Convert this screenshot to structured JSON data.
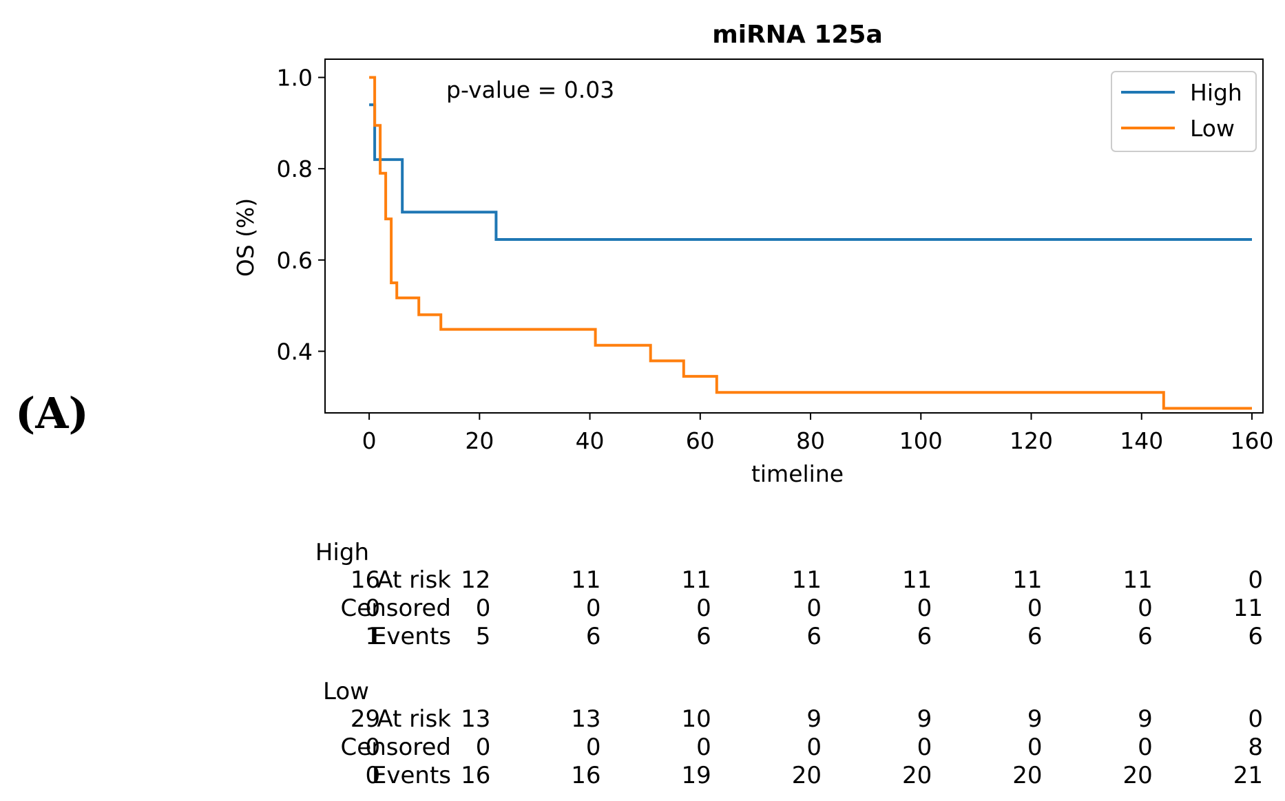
{
  "panel_label": "(A)",
  "chart_data": {
    "type": "line",
    "title": "miRNA 125a",
    "xlabel": "timeline",
    "ylabel": "OS (%)",
    "xlim": [
      -8,
      162
    ],
    "ylim": [
      0.265,
      1.04
    ],
    "xticks": [
      0,
      20,
      40,
      60,
      80,
      100,
      120,
      140,
      160
    ],
    "xtick_labels": [
      "0",
      "20",
      "40",
      "60",
      "80",
      "100",
      "120",
      "140",
      "160"
    ],
    "yticks": [
      0.4,
      0.6,
      0.8,
      1.0
    ],
    "ytick_labels": [
      "0.4",
      "0.6",
      "0.8",
      "1.0"
    ],
    "annotation": "p-value = 0.03",
    "legend_position": "top-right",
    "series": [
      {
        "name": "High",
        "color": "#1f77b4",
        "step_points": [
          [
            0,
            0.94
          ],
          [
            1,
            0.94
          ],
          [
            1,
            0.82
          ],
          [
            6,
            0.82
          ],
          [
            6,
            0.705
          ],
          [
            23,
            0.705
          ],
          [
            23,
            0.645
          ],
          [
            160,
            0.645
          ]
        ]
      },
      {
        "name": "Low",
        "color": "#ff7f0e",
        "step_points": [
          [
            0,
            1.0
          ],
          [
            1,
            1.0
          ],
          [
            1,
            0.895
          ],
          [
            2,
            0.895
          ],
          [
            2,
            0.79
          ],
          [
            3,
            0.79
          ],
          [
            3,
            0.69
          ],
          [
            4,
            0.69
          ],
          [
            4,
            0.55
          ],
          [
            5,
            0.55
          ],
          [
            5,
            0.517
          ],
          [
            9,
            0.517
          ],
          [
            9,
            0.48
          ],
          [
            13,
            0.48
          ],
          [
            13,
            0.448
          ],
          [
            41,
            0.448
          ],
          [
            41,
            0.413
          ],
          [
            51,
            0.413
          ],
          [
            51,
            0.379
          ],
          [
            57,
            0.379
          ],
          [
            57,
            0.345
          ],
          [
            63,
            0.345
          ],
          [
            63,
            0.31
          ],
          [
            144,
            0.31
          ],
          [
            144,
            0.275
          ],
          [
            160,
            0.275
          ]
        ]
      }
    ]
  },
  "risk_table": {
    "times": [
      0,
      20,
      40,
      60,
      80,
      100,
      120,
      140,
      160
    ],
    "row_labels": [
      "At risk",
      "Censored",
      "Events"
    ],
    "groups": [
      {
        "name": "High",
        "rows": {
          "at_risk": [
            "16",
            "12",
            "11",
            "11",
            "11",
            "11",
            "11",
            "11",
            "0"
          ],
          "censored": [
            "0",
            "0",
            "0",
            "0",
            "0",
            "0",
            "0",
            "0",
            "11"
          ],
          "events": [
            "1",
            "5",
            "6",
            "6",
            "6",
            "6",
            "6",
            "6",
            "6"
          ]
        }
      },
      {
        "name": "Low",
        "rows": {
          "at_risk": [
            "29",
            "13",
            "13",
            "10",
            "9",
            "9",
            "9",
            "9",
            "0"
          ],
          "censored": [
            "0",
            "0",
            "0",
            "0",
            "0",
            "0",
            "0",
            "0",
            "8"
          ],
          "events": [
            "0",
            "16",
            "16",
            "19",
            "20",
            "20",
            "20",
            "20",
            "21"
          ]
        }
      }
    ]
  }
}
